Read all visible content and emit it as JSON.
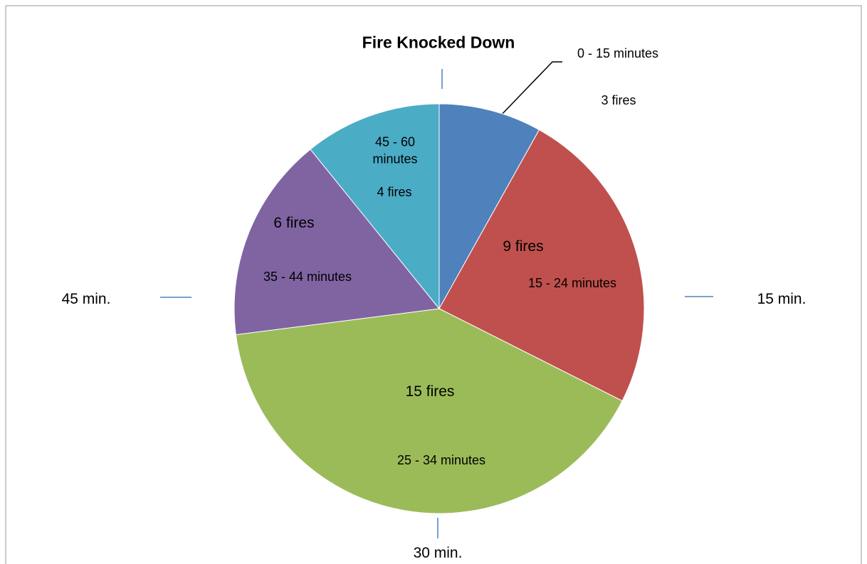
{
  "chart_data": {
    "type": "pie",
    "title": "Fire Knocked Down",
    "categories": [
      "0 - 15 minutes",
      "15 - 24 minutes",
      "25 - 34 minutes",
      "35 - 44 minutes",
      "45 - 60 minutes"
    ],
    "values": [
      3,
      9,
      15,
      6,
      4
    ],
    "value_labels": [
      "3 fires",
      "9 fires",
      "15 fires",
      "6 fires",
      "4 fires"
    ],
    "colors": [
      "#4f81bd",
      "#c0504d",
      "#9bbb59",
      "#8064a2",
      "#4bacc6"
    ],
    "annotations": [
      "15 min.",
      "30 min.",
      "45 min."
    ]
  }
}
